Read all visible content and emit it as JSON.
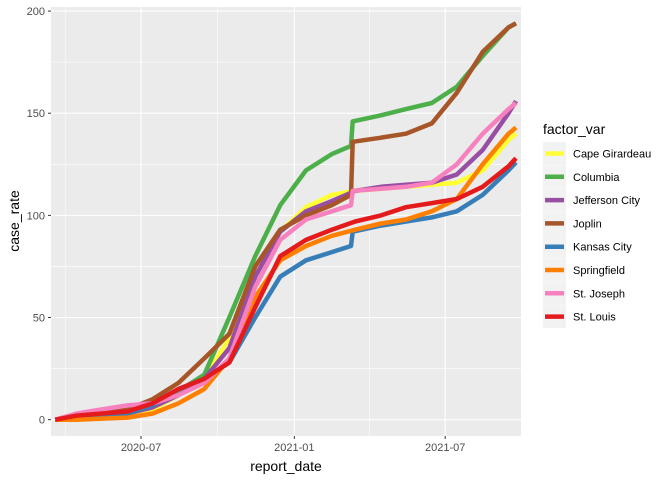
{
  "chart_data": {
    "type": "line",
    "xlabel": "report_date",
    "ylabel": "case_rate",
    "xlim": [
      "2020-03-15",
      "2021-09-30"
    ],
    "ylim": [
      -8,
      202
    ],
    "x_ticks": [
      {
        "date": "2020-07-01",
        "label": "2020-07"
      },
      {
        "date": "2021-01-01",
        "label": "2021-01"
      },
      {
        "date": "2021-07-01",
        "label": "2021-07"
      }
    ],
    "y_ticks": [
      0,
      50,
      100,
      150,
      200
    ],
    "grid": true,
    "legend": {
      "title": "factor_var",
      "position": "right"
    },
    "series": [
      {
        "name": "Cape Girardeau",
        "color": "#FFFF33",
        "points": [
          [
            "2020-03-20",
            0
          ],
          [
            "2020-04-15",
            0.5
          ],
          [
            "2020-05-15",
            1
          ],
          [
            "2020-06-15",
            2
          ],
          [
            "2020-07-15",
            5
          ],
          [
            "2020-08-15",
            12
          ],
          [
            "2020-09-15",
            20
          ],
          [
            "2020-10-15",
            40
          ],
          [
            "2020-11-15",
            75
          ],
          [
            "2020-12-15",
            92
          ],
          [
            "2021-01-15",
            104
          ],
          [
            "2021-02-15",
            110
          ],
          [
            "2021-03-15",
            112
          ],
          [
            "2021-04-15",
            113
          ],
          [
            "2021-05-15",
            114
          ],
          [
            "2021-06-15",
            115
          ],
          [
            "2021-07-15",
            116
          ],
          [
            "2021-08-15",
            122
          ],
          [
            "2021-09-15",
            137
          ],
          [
            "2021-09-24",
            140
          ]
        ]
      },
      {
        "name": "Columbia",
        "color": "#4DAF4A",
        "points": [
          [
            "2020-03-20",
            0
          ],
          [
            "2020-04-15",
            2
          ],
          [
            "2020-05-15",
            3
          ],
          [
            "2020-06-15",
            4
          ],
          [
            "2020-07-15",
            8
          ],
          [
            "2020-08-15",
            14
          ],
          [
            "2020-09-15",
            22
          ],
          [
            "2020-10-15",
            50
          ],
          [
            "2020-11-15",
            80
          ],
          [
            "2020-12-15",
            105
          ],
          [
            "2021-01-15",
            122
          ],
          [
            "2021-02-15",
            130
          ],
          [
            "2021-03-10",
            134
          ],
          [
            "2021-03-12",
            146
          ],
          [
            "2021-04-15",
            149
          ],
          [
            "2021-05-15",
            152
          ],
          [
            "2021-06-15",
            155
          ],
          [
            "2021-07-15",
            163
          ],
          [
            "2021-08-15",
            178
          ],
          [
            "2021-09-15",
            192
          ],
          [
            "2021-09-24",
            194
          ]
        ]
      },
      {
        "name": "Jefferson City",
        "color": "#984EA3",
        "points": [
          [
            "2020-03-20",
            0
          ],
          [
            "2020-04-15",
            1
          ],
          [
            "2020-05-15",
            2
          ],
          [
            "2020-06-15",
            3
          ],
          [
            "2020-07-15",
            6
          ],
          [
            "2020-08-15",
            12
          ],
          [
            "2020-09-15",
            20
          ],
          [
            "2020-10-15",
            35
          ],
          [
            "2020-11-15",
            70
          ],
          [
            "2020-12-15",
            92
          ],
          [
            "2021-01-15",
            102
          ],
          [
            "2021-02-15",
            107
          ],
          [
            "2021-03-15",
            112
          ],
          [
            "2021-04-15",
            114
          ],
          [
            "2021-05-15",
            115
          ],
          [
            "2021-06-15",
            116
          ],
          [
            "2021-07-15",
            120
          ],
          [
            "2021-08-15",
            132
          ],
          [
            "2021-09-15",
            150
          ],
          [
            "2021-09-24",
            156
          ]
        ]
      },
      {
        "name": "Joplin",
        "color": "#A65628",
        "points": [
          [
            "2020-03-20",
            0
          ],
          [
            "2020-04-15",
            1
          ],
          [
            "2020-05-15",
            3
          ],
          [
            "2020-06-15",
            5
          ],
          [
            "2020-07-15",
            10
          ],
          [
            "2020-08-15",
            18
          ],
          [
            "2020-09-15",
            30
          ],
          [
            "2020-10-15",
            42
          ],
          [
            "2020-11-15",
            75
          ],
          [
            "2020-12-15",
            93
          ],
          [
            "2021-01-15",
            100
          ],
          [
            "2021-02-15",
            105
          ],
          [
            "2021-03-10",
            110
          ],
          [
            "2021-03-12",
            136
          ],
          [
            "2021-04-15",
            138
          ],
          [
            "2021-05-15",
            140
          ],
          [
            "2021-06-15",
            145
          ],
          [
            "2021-07-15",
            160
          ],
          [
            "2021-08-15",
            180
          ],
          [
            "2021-09-15",
            192
          ],
          [
            "2021-09-24",
            194
          ]
        ]
      },
      {
        "name": "Kansas City",
        "color": "#377EB8",
        "points": [
          [
            "2020-03-20",
            0
          ],
          [
            "2020-04-15",
            1
          ],
          [
            "2020-05-15",
            2
          ],
          [
            "2020-06-15",
            3
          ],
          [
            "2020-07-15",
            7
          ],
          [
            "2020-08-15",
            15
          ],
          [
            "2020-09-15",
            20
          ],
          [
            "2020-10-15",
            28
          ],
          [
            "2020-11-15",
            50
          ],
          [
            "2020-12-15",
            70
          ],
          [
            "2021-01-15",
            78
          ],
          [
            "2021-02-15",
            82
          ],
          [
            "2021-03-10",
            85
          ],
          [
            "2021-03-12",
            92
          ],
          [
            "2021-04-15",
            95
          ],
          [
            "2021-05-15",
            97
          ],
          [
            "2021-06-15",
            99
          ],
          [
            "2021-07-15",
            102
          ],
          [
            "2021-08-15",
            110
          ],
          [
            "2021-09-15",
            122
          ],
          [
            "2021-09-24",
            126
          ]
        ]
      },
      {
        "name": "Springfield",
        "color": "#FF7F00",
        "points": [
          [
            "2020-03-20",
            0
          ],
          [
            "2020-04-15",
            0
          ],
          [
            "2020-05-15",
            0.5
          ],
          [
            "2020-06-15",
            1
          ],
          [
            "2020-07-15",
            3
          ],
          [
            "2020-08-15",
            8
          ],
          [
            "2020-09-15",
            15
          ],
          [
            "2020-10-15",
            30
          ],
          [
            "2020-11-15",
            60
          ],
          [
            "2020-12-15",
            78
          ],
          [
            "2021-01-15",
            85
          ],
          [
            "2021-02-15",
            90
          ],
          [
            "2021-03-15",
            93
          ],
          [
            "2021-04-15",
            96
          ],
          [
            "2021-05-15",
            98
          ],
          [
            "2021-06-15",
            102
          ],
          [
            "2021-07-15",
            108
          ],
          [
            "2021-08-15",
            125
          ],
          [
            "2021-09-15",
            140
          ],
          [
            "2021-09-24",
            143
          ]
        ]
      },
      {
        "name": "St. Joseph",
        "color": "#F781BF",
        "points": [
          [
            "2020-03-20",
            0
          ],
          [
            "2020-04-15",
            3
          ],
          [
            "2020-05-15",
            5
          ],
          [
            "2020-06-15",
            7
          ],
          [
            "2020-07-15",
            8
          ],
          [
            "2020-08-15",
            12
          ],
          [
            "2020-09-15",
            18
          ],
          [
            "2020-10-15",
            30
          ],
          [
            "2020-11-15",
            65
          ],
          [
            "2020-12-15",
            88
          ],
          [
            "2021-01-15",
            98
          ],
          [
            "2021-02-15",
            102
          ],
          [
            "2021-03-10",
            105
          ],
          [
            "2021-03-12",
            112
          ],
          [
            "2021-04-15",
            113
          ],
          [
            "2021-05-15",
            114
          ],
          [
            "2021-06-15",
            116
          ],
          [
            "2021-07-15",
            125
          ],
          [
            "2021-08-15",
            140
          ],
          [
            "2021-09-15",
            152
          ],
          [
            "2021-09-24",
            155
          ]
        ]
      },
      {
        "name": "St. Louis",
        "color": "#E41A1C",
        "points": [
          [
            "2020-03-20",
            0
          ],
          [
            "2020-04-15",
            2
          ],
          [
            "2020-05-15",
            3
          ],
          [
            "2020-06-15",
            4
          ],
          [
            "2020-07-15",
            8
          ],
          [
            "2020-08-15",
            15
          ],
          [
            "2020-09-15",
            20
          ],
          [
            "2020-10-15",
            28
          ],
          [
            "2020-11-15",
            55
          ],
          [
            "2020-12-15",
            80
          ],
          [
            "2021-01-15",
            88
          ],
          [
            "2021-02-15",
            93
          ],
          [
            "2021-03-15",
            97
          ],
          [
            "2021-04-15",
            100
          ],
          [
            "2021-05-15",
            104
          ],
          [
            "2021-06-15",
            106
          ],
          [
            "2021-07-15",
            108
          ],
          [
            "2021-08-15",
            114
          ],
          [
            "2021-09-15",
            124
          ],
          [
            "2021-09-24",
            128
          ]
        ]
      }
    ]
  }
}
